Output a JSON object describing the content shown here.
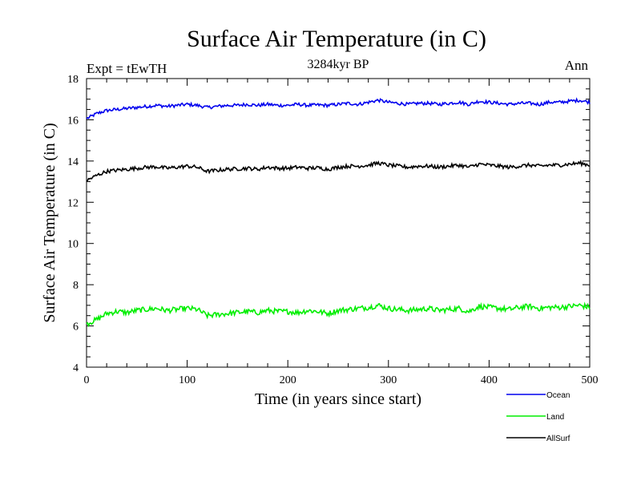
{
  "chart_data": {
    "type": "line",
    "title": "Surface Air Temperature (in C)",
    "subtitle": "3284kyr BP",
    "expt_label": "Expt = tEwTH",
    "season_label": "Ann",
    "xlabel": "Time (in years since start)",
    "ylabel": "Surface Air Temperature (in C)",
    "xlim": [
      0,
      500
    ],
    "ylim": [
      4,
      18
    ],
    "x_ticks": [
      0,
      100,
      200,
      300,
      400,
      500
    ],
    "x_tick_labels": [
      "0",
      "100",
      "200",
      "300",
      "400",
      "500"
    ],
    "y_ticks": [
      4,
      6,
      8,
      10,
      12,
      14,
      16,
      18
    ],
    "y_tick_labels": [
      "4",
      "6",
      "8",
      "10",
      "12",
      "14",
      "16",
      "18"
    ],
    "grid": false,
    "legend_position": "bottom-right",
    "series": [
      {
        "name": "Ocean",
        "color": "#0000ee",
        "x": [
          0,
          10,
          20,
          30,
          40,
          50,
          60,
          70,
          80,
          90,
          100,
          110,
          120,
          130,
          140,
          150,
          160,
          170,
          180,
          190,
          200,
          210,
          220,
          230,
          240,
          250,
          260,
          270,
          280,
          290,
          300,
          310,
          320,
          330,
          340,
          350,
          360,
          370,
          380,
          390,
          400,
          410,
          420,
          430,
          440,
          450,
          460,
          470,
          480,
          490,
          500
        ],
        "y": [
          16.05,
          16.3,
          16.45,
          16.5,
          16.55,
          16.6,
          16.65,
          16.7,
          16.65,
          16.7,
          16.75,
          16.7,
          16.6,
          16.65,
          16.7,
          16.7,
          16.75,
          16.7,
          16.75,
          16.7,
          16.7,
          16.75,
          16.7,
          16.72,
          16.7,
          16.75,
          16.8,
          16.75,
          16.85,
          16.95,
          16.85,
          16.8,
          16.75,
          16.8,
          16.8,
          16.75,
          16.8,
          16.85,
          16.75,
          16.9,
          16.85,
          16.8,
          16.75,
          16.8,
          16.8,
          16.75,
          16.85,
          16.85,
          16.9,
          16.95,
          16.85
        ]
      },
      {
        "name": "Land",
        "color": "#00ee00",
        "x": [
          0,
          10,
          20,
          30,
          40,
          50,
          60,
          70,
          80,
          90,
          100,
          110,
          120,
          130,
          140,
          150,
          160,
          170,
          180,
          190,
          200,
          210,
          220,
          230,
          240,
          250,
          260,
          270,
          280,
          290,
          300,
          310,
          320,
          330,
          340,
          350,
          360,
          370,
          380,
          390,
          400,
          410,
          420,
          430,
          440,
          450,
          460,
          470,
          480,
          490,
          500
        ],
        "y": [
          6.1,
          6.3,
          6.6,
          6.7,
          6.65,
          6.75,
          6.8,
          6.85,
          6.75,
          6.8,
          6.85,
          6.8,
          6.5,
          6.55,
          6.6,
          6.65,
          6.7,
          6.65,
          6.75,
          6.7,
          6.7,
          6.65,
          6.75,
          6.7,
          6.6,
          6.75,
          6.8,
          6.85,
          6.9,
          7.0,
          6.85,
          6.8,
          6.75,
          6.8,
          6.85,
          6.75,
          6.8,
          6.85,
          6.7,
          6.95,
          6.9,
          6.85,
          6.8,
          6.9,
          6.95,
          6.85,
          6.9,
          6.9,
          6.95,
          7.0,
          6.9
        ]
      },
      {
        "name": "AllSurf",
        "color": "#000000",
        "x": [
          0,
          10,
          20,
          30,
          40,
          50,
          60,
          70,
          80,
          90,
          100,
          110,
          120,
          130,
          140,
          150,
          160,
          170,
          180,
          190,
          200,
          210,
          220,
          230,
          240,
          250,
          260,
          270,
          280,
          290,
          300,
          310,
          320,
          330,
          340,
          350,
          360,
          370,
          380,
          390,
          400,
          410,
          420,
          430,
          440,
          450,
          460,
          470,
          480,
          490,
          500
        ],
        "y": [
          13.05,
          13.3,
          13.5,
          13.55,
          13.6,
          13.65,
          13.7,
          13.72,
          13.65,
          13.7,
          13.75,
          13.7,
          13.5,
          13.55,
          13.6,
          13.62,
          13.65,
          13.6,
          13.7,
          13.65,
          13.65,
          13.7,
          13.65,
          13.67,
          13.6,
          13.7,
          13.75,
          13.75,
          13.8,
          13.9,
          13.8,
          13.75,
          13.7,
          13.75,
          13.75,
          13.7,
          13.75,
          13.8,
          13.7,
          13.85,
          13.8,
          13.75,
          13.7,
          13.75,
          13.8,
          13.75,
          13.8,
          13.8,
          13.85,
          13.9,
          13.8
        ]
      }
    ]
  }
}
